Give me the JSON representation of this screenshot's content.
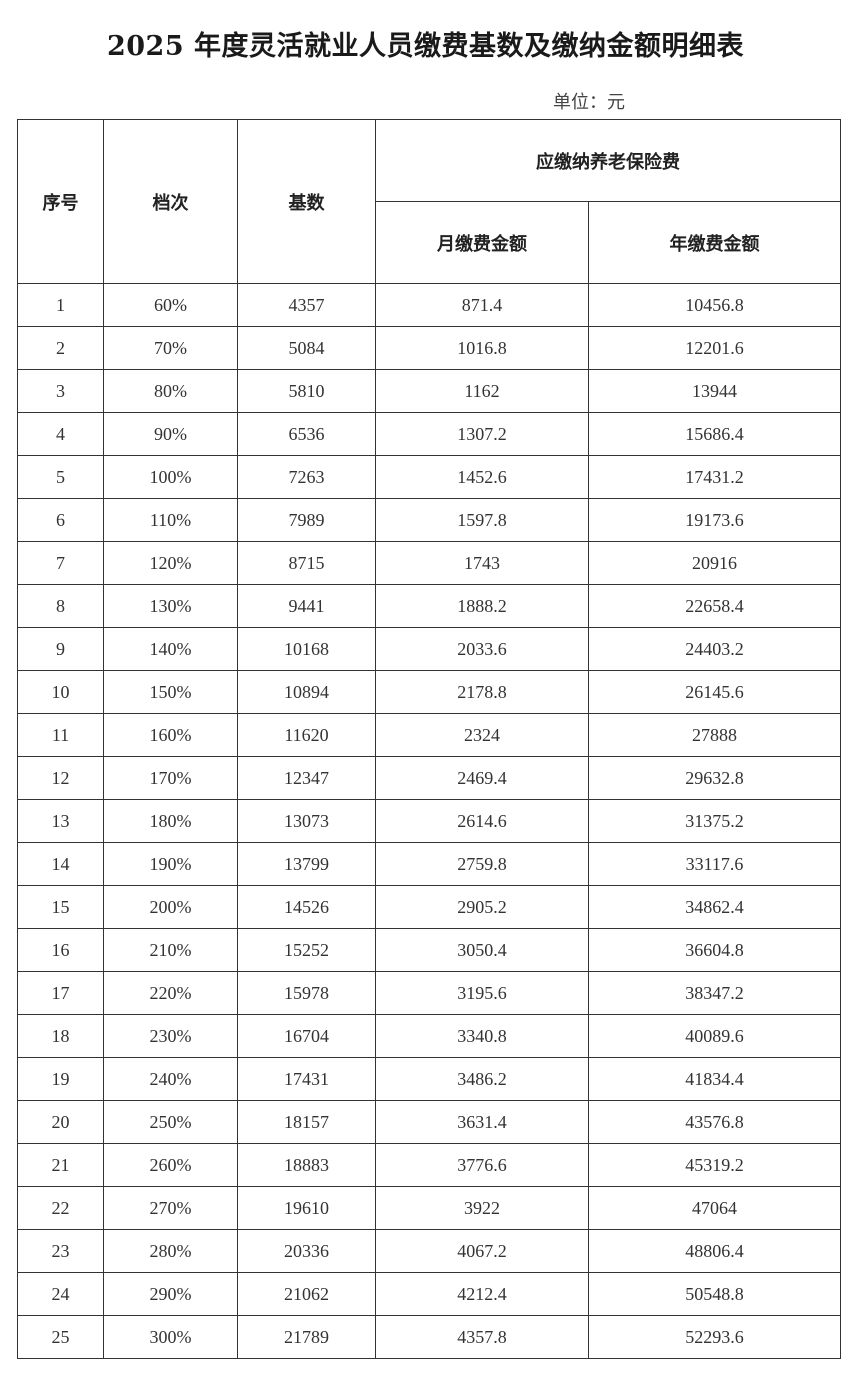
{
  "title": "2025 年度灵活就业人员缴费基数及缴纳金额明细表",
  "unit": "单位：元",
  "headers": {
    "index": "序号",
    "tier": "档次",
    "base": "基数",
    "group": "应缴纳养老保险费",
    "monthly": "月缴费金额",
    "yearly": "年缴费金额"
  },
  "rows": [
    [
      "1",
      "60%",
      "4357",
      "871.4",
      "10456.8"
    ],
    [
      "2",
      "70%",
      "5084",
      "1016.8",
      "12201.6"
    ],
    [
      "3",
      "80%",
      "5810",
      "1162",
      "13944"
    ],
    [
      "4",
      "90%",
      "6536",
      "1307.2",
      "15686.4"
    ],
    [
      "5",
      "100%",
      "7263",
      "1452.6",
      "17431.2"
    ],
    [
      "6",
      "110%",
      "7989",
      "1597.8",
      "19173.6"
    ],
    [
      "7",
      "120%",
      "8715",
      "1743",
      "20916"
    ],
    [
      "8",
      "130%",
      "9441",
      "1888.2",
      "22658.4"
    ],
    [
      "9",
      "140%",
      "10168",
      "2033.6",
      "24403.2"
    ],
    [
      "10",
      "150%",
      "10894",
      "2178.8",
      "26145.6"
    ],
    [
      "11",
      "160%",
      "11620",
      "2324",
      "27888"
    ],
    [
      "12",
      "170%",
      "12347",
      "2469.4",
      "29632.8"
    ],
    [
      "13",
      "180%",
      "13073",
      "2614.6",
      "31375.2"
    ],
    [
      "14",
      "190%",
      "13799",
      "2759.8",
      "33117.6"
    ],
    [
      "15",
      "200%",
      "14526",
      "2905.2",
      "34862.4"
    ],
    [
      "16",
      "210%",
      "15252",
      "3050.4",
      "36604.8"
    ],
    [
      "17",
      "220%",
      "15978",
      "3195.6",
      "38347.2"
    ],
    [
      "18",
      "230%",
      "16704",
      "3340.8",
      "40089.6"
    ],
    [
      "19",
      "240%",
      "17431",
      "3486.2",
      "41834.4"
    ],
    [
      "20",
      "250%",
      "18157",
      "3631.4",
      "43576.8"
    ],
    [
      "21",
      "260%",
      "18883",
      "3776.6",
      "45319.2"
    ],
    [
      "22",
      "270%",
      "19610",
      "3922",
      "47064"
    ],
    [
      "23",
      "280%",
      "20336",
      "4067.2",
      "48806.4"
    ],
    [
      "24",
      "290%",
      "21062",
      "4212.4",
      "50548.8"
    ],
    [
      "25",
      "300%",
      "21789",
      "4357.8",
      "52293.6"
    ]
  ]
}
